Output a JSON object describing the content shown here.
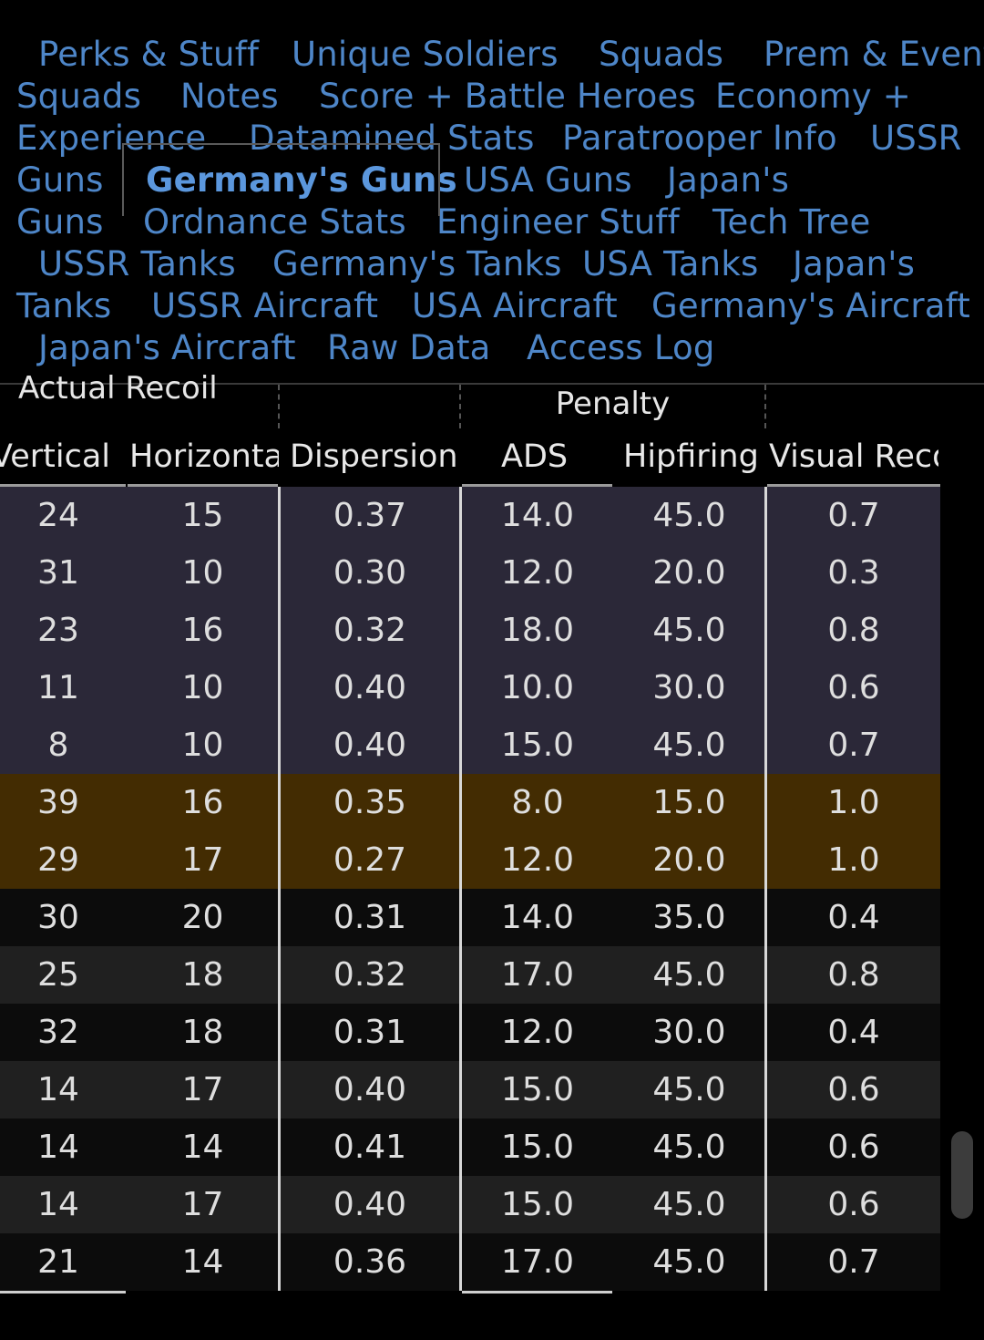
{
  "tabs": [
    {
      "label": "Perks & Stuff",
      "active": false
    },
    {
      "label": "Unique Soldiers",
      "active": false
    },
    {
      "label": "Squads",
      "active": false
    },
    {
      "label": "Prem & Event",
      "active": false
    },
    {
      "label": "Squads",
      "active": false
    },
    {
      "label": "Notes",
      "active": false
    },
    {
      "label": "Score + Battle Heroes",
      "active": false
    },
    {
      "label": "Economy +",
      "active": false
    },
    {
      "label": "Experience",
      "active": false
    },
    {
      "label": "Datamined Stats",
      "active": false
    },
    {
      "label": "Paratrooper Info",
      "active": false
    },
    {
      "label": "USSR",
      "active": false
    },
    {
      "label": "Guns",
      "active": false
    },
    {
      "label": "Germany's Guns",
      "active": true
    },
    {
      "label": "USA Guns",
      "active": false
    },
    {
      "label": "Japan's",
      "active": false
    },
    {
      "label": "Guns",
      "active": false
    },
    {
      "label": "Ordnance Stats",
      "active": false
    },
    {
      "label": "Engineer Stuff",
      "active": false
    },
    {
      "label": "Tech Tree",
      "active": false
    },
    {
      "label": "USSR Tanks",
      "active": false
    },
    {
      "label": "Germany's Tanks",
      "active": false
    },
    {
      "label": "USA Tanks",
      "active": false
    },
    {
      "label": "Japan's",
      "active": false
    },
    {
      "label": "Tanks",
      "active": false
    },
    {
      "label": "USSR Aircraft",
      "active": false
    },
    {
      "label": "USA Aircraft",
      "active": false
    },
    {
      "label": "Germany's Aircraft",
      "active": false
    },
    {
      "label": "Japan's Aircraft",
      "active": false
    },
    {
      "label": "Raw Data",
      "active": false
    },
    {
      "label": "Access Log",
      "active": false
    }
  ],
  "group_headers": {
    "recoil": "Actual Recoil",
    "penalty": "Penalty"
  },
  "columns": [
    "Vertical",
    "Horizontal",
    "Dispersion",
    "ADS",
    "Hipfiring",
    "Visual Recoil"
  ],
  "colors": {
    "tab_link": "#4e86c8",
    "row_purple": "#2b2838",
    "row_gold": "#432c02",
    "row_dark": "#0c0c0c",
    "row_alt": "#202020"
  },
  "rows": [
    {
      "style": "purple",
      "cells": [
        "24",
        "15",
        "0.37",
        "14.0",
        "45.0",
        "0.7"
      ]
    },
    {
      "style": "purple",
      "cells": [
        "31",
        "10",
        "0.30",
        "12.0",
        "20.0",
        "0.3"
      ]
    },
    {
      "style": "purple",
      "cells": [
        "23",
        "16",
        "0.32",
        "18.0",
        "45.0",
        "0.8"
      ]
    },
    {
      "style": "purple",
      "cells": [
        "11",
        "10",
        "0.40",
        "10.0",
        "30.0",
        "0.6"
      ]
    },
    {
      "style": "purple",
      "cells": [
        "8",
        "10",
        "0.40",
        "15.0",
        "45.0",
        "0.7"
      ]
    },
    {
      "style": "gold",
      "cells": [
        "39",
        "16",
        "0.35",
        "8.0",
        "15.0",
        "1.0"
      ]
    },
    {
      "style": "gold",
      "cells": [
        "29",
        "17",
        "0.27",
        "12.0",
        "20.0",
        "1.0"
      ]
    },
    {
      "style": "dark",
      "cells": [
        "30",
        "20",
        "0.31",
        "14.0",
        "35.0",
        "0.4"
      ]
    },
    {
      "style": "alt",
      "cells": [
        "25",
        "18",
        "0.32",
        "17.0",
        "45.0",
        "0.8"
      ]
    },
    {
      "style": "dark",
      "cells": [
        "32",
        "18",
        "0.31",
        "12.0",
        "30.0",
        "0.4"
      ]
    },
    {
      "style": "alt",
      "cells": [
        "14",
        "17",
        "0.40",
        "15.0",
        "45.0",
        "0.6"
      ]
    },
    {
      "style": "dark",
      "cells": [
        "14",
        "14",
        "0.41",
        "15.0",
        "45.0",
        "0.6"
      ]
    },
    {
      "style": "alt",
      "cells": [
        "14",
        "17",
        "0.40",
        "15.0",
        "45.0",
        "0.6"
      ]
    },
    {
      "style": "dark",
      "cells": [
        "21",
        "14",
        "0.36",
        "17.0",
        "45.0",
        "0.7"
      ]
    }
  ]
}
